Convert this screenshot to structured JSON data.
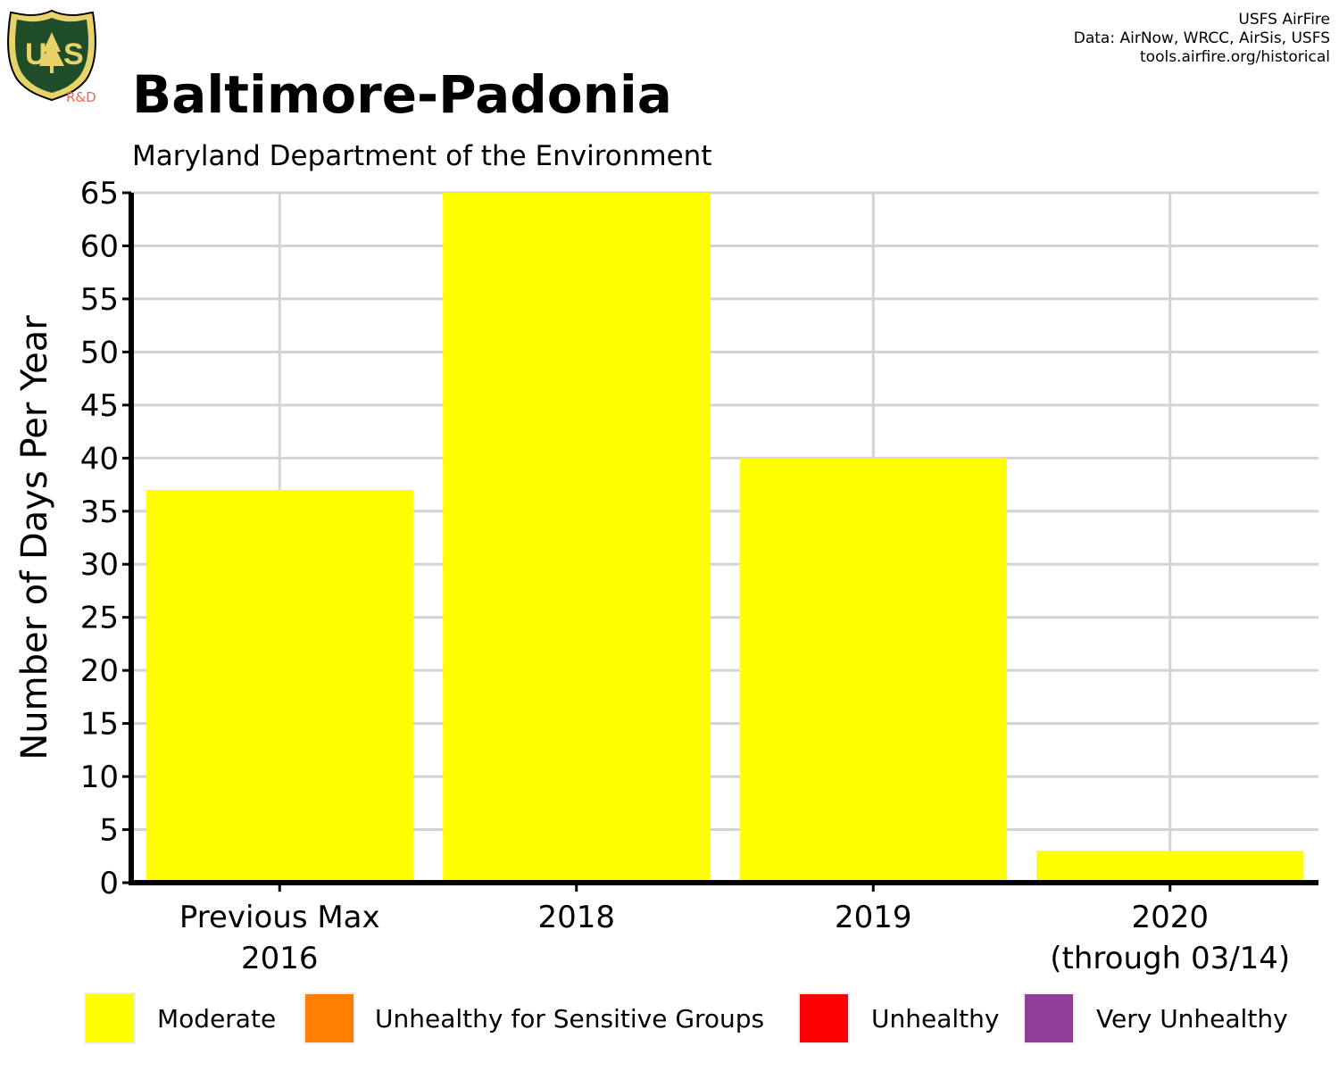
{
  "header": {
    "title": "Baltimore-Padonia",
    "subtitle": "Maryland Department of the Environment",
    "credits": [
      "USFS AirFire",
      "Data: AirNow, WRCC, AirSis, USFS",
      "tools.airfire.org/historical"
    ],
    "logo_text": "R&D"
  },
  "colors": {
    "Moderate": "#ffff00",
    "Unhealthy for Sensitive Groups": "#ff7e00",
    "Unhealthy": "#ff0000",
    "Very Unhealthy": "#8f3f97",
    "grid": "#d3d3d3",
    "logo_green": "#1f4d2a",
    "logo_gold": "#e8d26a"
  },
  "chart_data": {
    "type": "bar",
    "categories": [
      [
        "Previous Max",
        "2016"
      ],
      [
        "2018"
      ],
      [
        "2019"
      ],
      [
        "2020",
        "(through 03/14)"
      ]
    ],
    "series": [
      {
        "name": "Moderate",
        "values": [
          37,
          65,
          40,
          3
        ]
      },
      {
        "name": "Unhealthy for Sensitive Groups",
        "values": [
          0,
          0,
          0,
          0
        ]
      },
      {
        "name": "Unhealthy",
        "values": [
          0,
          0,
          0,
          0
        ]
      },
      {
        "name": "Very Unhealthy",
        "values": [
          0,
          0,
          0,
          0
        ]
      }
    ],
    "ylabel": "Number of Days Per Year",
    "xlabel": "",
    "ylim": [
      0,
      65
    ],
    "yticks": [
      0,
      5,
      10,
      15,
      20,
      25,
      30,
      35,
      40,
      45,
      50,
      55,
      60,
      65
    ],
    "grid": true,
    "legend": {
      "placement": "bottom",
      "entries": [
        "Moderate",
        "Unhealthy for Sensitive Groups",
        "Unhealthy",
        "Very Unhealthy"
      ]
    }
  }
}
